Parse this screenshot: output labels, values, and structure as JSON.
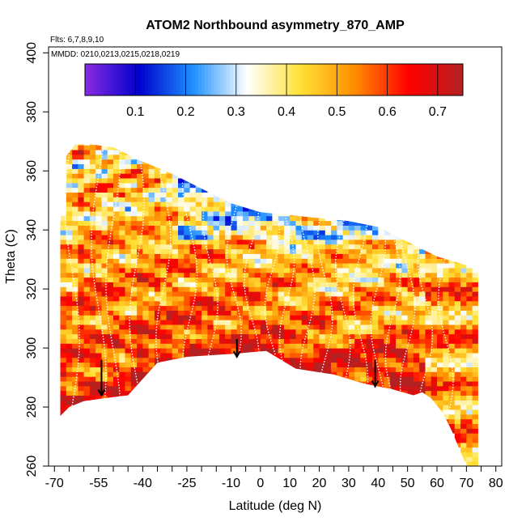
{
  "chart_data": {
    "type": "heatmap",
    "title": "ATOM2 Northbound asymmetry_870_AMP",
    "flights_label": "Flts: 6,7,8,9,10",
    "dates_label": "MMDD: 0210,0213,0215,0218,0219",
    "xlabel": "Latitude (deg N)",
    "ylabel": "Theta (C)",
    "xlim": [
      -72,
      82
    ],
    "ylim": [
      260,
      402
    ],
    "x_ticks": [
      -70,
      -55,
      -40,
      -25,
      -10,
      0,
      10,
      20,
      30,
      40,
      50,
      60,
      70,
      80
    ],
    "x_tick_labels": [
      "-70",
      "-55",
      "-40",
      "-25",
      "-10",
      "0",
      "10",
      "20",
      "30",
      "40",
      "50",
      "60",
      "70",
      "80"
    ],
    "x_minor_ticks": [
      -65,
      -60,
      -50,
      -45,
      -35,
      -30,
      -20,
      -15,
      -5,
      5,
      15,
      25,
      35,
      45,
      55,
      65,
      75
    ],
    "y_ticks": [
      260,
      280,
      300,
      320,
      340,
      360,
      380,
      400
    ],
    "y_tick_labels": [
      "260",
      "280",
      "300",
      "320",
      "340",
      "360",
      "380",
      "400"
    ],
    "colorbar": {
      "range": [
        0,
        0.75
      ],
      "ticks": [
        0.1,
        0.2,
        0.3,
        0.4,
        0.5,
        0.6,
        0.7
      ],
      "tick_labels": [
        "0.1",
        "0.2",
        "0.3",
        "0.4",
        "0.5",
        "0.6",
        "0.7"
      ],
      "colors": [
        "#8b2be2",
        "#0000cd",
        "#1e90ff",
        "#ffffff",
        "#ffe135",
        "#ff8c00",
        "#ff0000",
        "#b22222"
      ]
    },
    "upper_boundary": [
      [
        -68,
        342
      ],
      [
        -66,
        365
      ],
      [
        -63,
        369
      ],
      [
        -58,
        369
      ],
      [
        -50,
        368
      ],
      [
        -42,
        364
      ],
      [
        -30,
        359
      ],
      [
        -20,
        354
      ],
      [
        -10,
        349
      ],
      [
        0,
        346
      ],
      [
        10,
        345
      ],
      [
        20,
        344
      ],
      [
        30,
        343
      ],
      [
        40,
        341
      ],
      [
        50,
        336
      ],
      [
        60,
        331
      ],
      [
        70,
        328
      ],
      [
        74,
        326
      ]
    ],
    "lower_boundary": [
      [
        -68,
        277
      ],
      [
        -65,
        280
      ],
      [
        -60,
        282
      ],
      [
        -53,
        283
      ],
      [
        -45,
        284
      ],
      [
        -35,
        295
      ],
      [
        -25,
        297
      ],
      [
        -10,
        298
      ],
      [
        2,
        299
      ],
      [
        12,
        293
      ],
      [
        25,
        291
      ],
      [
        35,
        288
      ],
      [
        45,
        286
      ],
      [
        52,
        284
      ],
      [
        55,
        285
      ],
      [
        58,
        283
      ],
      [
        62,
        278
      ],
      [
        65,
        272
      ],
      [
        70,
        260
      ],
      [
        74,
        260
      ]
    ],
    "arrows": [
      {
        "lat": -54,
        "theta_top": 296,
        "theta_tip": 284
      },
      {
        "lat": -8,
        "theta_top": 303,
        "theta_tip": 297
      },
      {
        "lat": 39,
        "theta_top": 296,
        "theta_tip": 287
      }
    ]
  }
}
